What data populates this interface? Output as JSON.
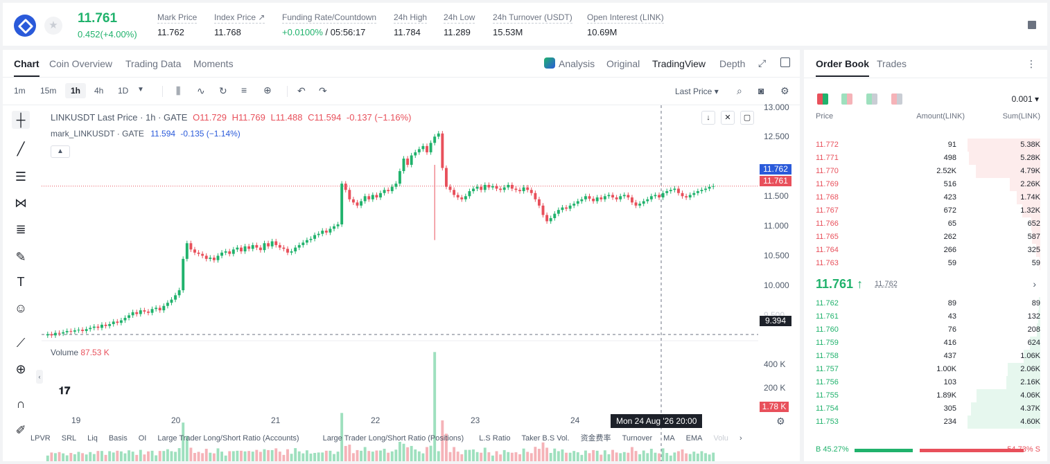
{
  "ticker": {
    "last_price": "11.761",
    "change": "0.452(+4.00%)",
    "stats": [
      {
        "label": "Mark Price",
        "value": "11.762"
      },
      {
        "label": "Index Price ↗",
        "value": "11.768"
      },
      {
        "label": "Funding Rate/Countdown",
        "value_green": "+0.0100%",
        "value": " / 05:56:17"
      },
      {
        "label": "24h High",
        "value": "11.784"
      },
      {
        "label": "24h Low",
        "value": "11.289"
      },
      {
        "label": "24h Turnover (USDT)",
        "value": "15.53M"
      },
      {
        "label": "Open Interest (LINK)",
        "value": "10.69M"
      }
    ]
  },
  "chart_tabs": [
    "Chart",
    "Coin Overview",
    "Trading Data",
    "Moments"
  ],
  "view_tabs": [
    "Analysis",
    "Original",
    "TradingView",
    "Depth"
  ],
  "timeframes": [
    "1m",
    "15m",
    "1h",
    "4h",
    "1D"
  ],
  "price_select": "Last Price",
  "legend": {
    "symbol": "LINKUSDT Last Price · 1h · GATE",
    "o_label": "O",
    "o": "11.729",
    "h_label": "H",
    "h": "11.769",
    "l_label": "L",
    "l": "11.488",
    "c_label": "C",
    "c": "11.594",
    "chg": "-0.137 (−1.16%)",
    "mark_name": "mark_LINKUSDT · GATE",
    "mark_val": "11.594",
    "mark_chg": "-0.135 (−1.14%)"
  },
  "volume_legend": {
    "label": "Volume",
    "value": "87.53 K"
  },
  "y_ticks": [
    "13.000",
    "12.500",
    "12.000",
    "11.500",
    "11.000",
    "10.500",
    "10.000",
    "9.500"
  ],
  "vol_ticks": [
    "400 K",
    "200 K"
  ],
  "badges": {
    "mark": "11.762",
    "last": "11.761",
    "cross": "9.394",
    "vol": "1.78 K"
  },
  "x_labels": [
    "19",
    "20",
    "21",
    "22",
    "23",
    "24"
  ],
  "crosshair_time": "Mon 24 Aug '26   20:00",
  "bottom_indicators": [
    "LPVR",
    "SRL",
    "Liq",
    "Basis",
    "OI",
    "Large Trader Long/Short Ratio (Accounts)",
    "Large Trader Long/Short Ratio (Positions)",
    "L.S Ratio",
    "Taker B.S Vol.",
    "资金费率",
    "Turnover",
    "MA",
    "EMA",
    "Volu"
  ],
  "colors": {
    "up": "#20b26c",
    "down": "#e8505b"
  },
  "chart_data": {
    "type": "candlestick",
    "title": "LINKUSDT Last Price · 1h · GATE",
    "ylim": [
      9.35,
      13.05
    ],
    "x_categories": [
      "19",
      "20",
      "21",
      "22",
      "23",
      "24"
    ],
    "closes": [
      9.4,
      9.38,
      9.42,
      9.41,
      9.43,
      9.45,
      9.44,
      9.46,
      9.47,
      9.45,
      9.48,
      9.5,
      9.52,
      9.5,
      9.55,
      9.53,
      9.56,
      9.6,
      9.58,
      9.62,
      9.66,
      9.7,
      9.75,
      9.72,
      9.78,
      9.76,
      9.74,
      9.8,
      9.82,
      9.78,
      9.85,
      9.9,
      9.95,
      10.02,
      10.1,
      10.6,
      10.85,
      10.75,
      10.7,
      10.68,
      10.65,
      10.6,
      10.62,
      10.58,
      10.65,
      10.7,
      10.72,
      10.68,
      10.75,
      10.78,
      10.72,
      10.8,
      10.76,
      10.82,
      10.78,
      10.74,
      10.85,
      10.8,
      10.88,
      10.82,
      10.78,
      10.76,
      10.7,
      10.72,
      10.78,
      10.82,
      10.86,
      10.9,
      10.92,
      10.98,
      11.0,
      11.05,
      11.02,
      11.08,
      11.12,
      11.15,
      11.8,
      11.7,
      11.55,
      11.5,
      11.45,
      11.52,
      11.6,
      11.55,
      11.62,
      11.58,
      11.65,
      11.7,
      11.68,
      11.75,
      11.8,
      12.0,
      12.2,
      12.1,
      12.25,
      12.3,
      12.35,
      12.4,
      12.3,
      12.45,
      12.55,
      12.6,
      12.05,
      11.75,
      11.7,
      11.62,
      11.58,
      11.55,
      11.6,
      11.68,
      11.72,
      11.75,
      11.7,
      11.78,
      11.74,
      11.76,
      11.72,
      11.7,
      11.74,
      11.78,
      11.72,
      11.7,
      11.68,
      11.74,
      11.7,
      11.65,
      11.55,
      11.45,
      11.3,
      11.2,
      11.25,
      11.32,
      11.38,
      11.42,
      11.4,
      11.45,
      11.48,
      11.52,
      11.55,
      11.6,
      11.56,
      11.52,
      11.58,
      11.55,
      11.6,
      11.62,
      11.58,
      11.55,
      11.6,
      11.62,
      11.58,
      11.5,
      11.45,
      11.48,
      11.52,
      11.55,
      11.6,
      11.62,
      11.58,
      11.65,
      11.68,
      11.7,
      11.72,
      11.65,
      11.6,
      11.58,
      11.62,
      11.65,
      11.68,
      11.7,
      11.72,
      11.75,
      11.761
    ],
    "volume_ylim": [
      0,
      520
    ],
    "volume_spike": {
      "index": 100,
      "value": 500
    },
    "mark_line": 11.761,
    "crosshair_price": 9.394
  },
  "order_book": {
    "tabs": [
      "Order Book",
      "Trades"
    ],
    "precision": "0.001",
    "headers": [
      "Price",
      "Amount(LINK)",
      "Sum(LINK)"
    ],
    "asks": [
      {
        "p": "11.772",
        "a": "91",
        "s": "5.38K",
        "w": 1.0
      },
      {
        "p": "11.771",
        "a": "498",
        "s": "5.28K",
        "w": 0.98
      },
      {
        "p": "11.770",
        "a": "2.52K",
        "s": "4.79K",
        "w": 0.89
      },
      {
        "p": "11.769",
        "a": "516",
        "s": "2.26K",
        "w": 0.42
      },
      {
        "p": "11.768",
        "a": "423",
        "s": "1.74K",
        "w": 0.32
      },
      {
        "p": "11.767",
        "a": "672",
        "s": "1.32K",
        "w": 0.25
      },
      {
        "p": "11.766",
        "a": "65",
        "s": "652",
        "w": 0.12
      },
      {
        "p": "11.765",
        "a": "262",
        "s": "587",
        "w": 0.11
      },
      {
        "p": "11.764",
        "a": "266",
        "s": "325",
        "w": 0.06
      },
      {
        "p": "11.763",
        "a": "59",
        "s": "59",
        "w": 0.01
      }
    ],
    "mid_price": "11.761 ↑",
    "mid_mark": "11.762",
    "bids": [
      {
        "p": "11.762",
        "a": "89",
        "s": "89",
        "w": 0.02
      },
      {
        "p": "11.761",
        "a": "43",
        "s": "132",
        "w": 0.03
      },
      {
        "p": "11.760",
        "a": "76",
        "s": "208",
        "w": 0.05
      },
      {
        "p": "11.759",
        "a": "416",
        "s": "624",
        "w": 0.14
      },
      {
        "p": "11.758",
        "a": "437",
        "s": "1.06K",
        "w": 0.23
      },
      {
        "p": "11.757",
        "a": "1.00K",
        "s": "2.06K",
        "w": 0.45
      },
      {
        "p": "11.756",
        "a": "103",
        "s": "2.16K",
        "w": 0.47
      },
      {
        "p": "11.755",
        "a": "1.89K",
        "s": "4.06K",
        "w": 0.88
      },
      {
        "p": "11.754",
        "a": "305",
        "s": "4.37K",
        "w": 0.95
      },
      {
        "p": "11.753",
        "a": "234",
        "s": "4.60K",
        "w": 1.0
      }
    ],
    "buy_ratio": "B 45.27%",
    "sell_ratio": "54.73% S",
    "buy_pct": 45.27
  }
}
